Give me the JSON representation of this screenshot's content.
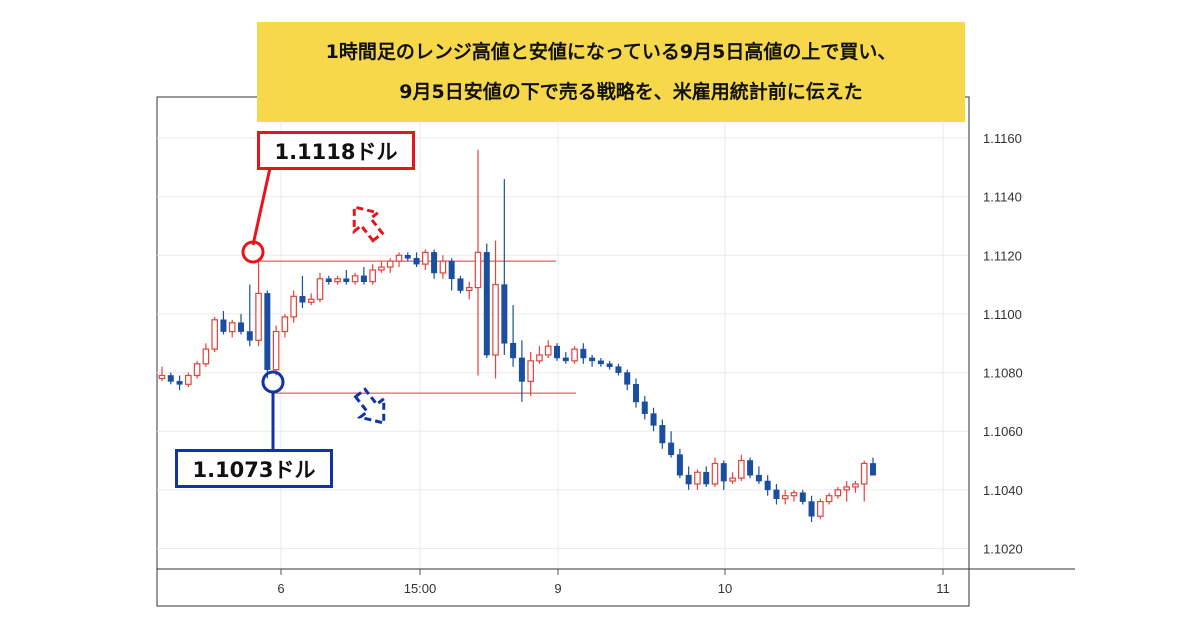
{
  "banner": {
    "line1": "1時間足のレンジ高値と安値になっている9月5日高値の上で買い、",
    "line2": "9月5日安値の下で売る戦略を、米雇用統計前に伝えた"
  },
  "annotations": {
    "high_label": "1.1118ドル",
    "low_label": "1.1073ドル"
  },
  "colors": {
    "up_candle": "#e8413a",
    "down_candle": "#1a4fa0",
    "high_marker": "#e8141c",
    "low_marker": "#1133a8",
    "banner_bg": "#f7d84a",
    "grid": "#ebebeb"
  },
  "chart_data": {
    "type": "candlestick",
    "timeframe": "1h",
    "y_axis": {
      "ticks": [
        "1.1020",
        "1.1040",
        "1.1060",
        "1.1080",
        "1.1100",
        "1.1120",
        "1.1140",
        "1.1160"
      ],
      "range": [
        1.1013,
        1.1174
      ],
      "position": "right"
    },
    "x_axis": {
      "ticks": [
        "6",
        "15:00",
        "9",
        "10",
        "11"
      ]
    },
    "levels": [
      {
        "name": "9月5日高値",
        "value": 1.1118,
        "label": "1.1118ドル",
        "color": "#e8141c"
      },
      {
        "name": "9月5日安値",
        "value": 1.1073,
        "label": "1.1073ドル",
        "color": "#1133a8"
      }
    ],
    "candles": [
      [
        1.1078,
        1.1082,
        1.1077,
        1.1079
      ],
      [
        1.1079,
        1.108,
        1.1076,
        1.1077
      ],
      [
        1.1077,
        1.1079,
        1.1074,
        1.1076
      ],
      [
        1.1076,
        1.108,
        1.1075,
        1.1079
      ],
      [
        1.1079,
        1.1084,
        1.1078,
        1.1083
      ],
      [
        1.1083,
        1.109,
        1.1082,
        1.1088
      ],
      [
        1.1088,
        1.1099,
        1.1087,
        1.1098
      ],
      [
        1.1098,
        1.1101,
        1.1093,
        1.1094
      ],
      [
        1.1094,
        1.1098,
        1.1092,
        1.1097
      ],
      [
        1.1097,
        1.11,
        1.1093,
        1.1094
      ],
      [
        1.1094,
        1.111,
        1.1089,
        1.1091
      ],
      [
        1.1091,
        1.1119,
        1.1089,
        1.1107
      ],
      [
        1.1107,
        1.1108,
        1.1078,
        1.1081
      ],
      [
        1.1081,
        1.1096,
        1.1079,
        1.1094
      ],
      [
        1.1094,
        1.11,
        1.1092,
        1.1099
      ],
      [
        1.1099,
        1.1108,
        1.1097,
        1.1106
      ],
      [
        1.1106,
        1.1113,
        1.1102,
        1.1104
      ],
      [
        1.1104,
        1.1107,
        1.1103,
        1.1105
      ],
      [
        1.1105,
        1.1114,
        1.1104,
        1.1112
      ],
      [
        1.1112,
        1.1113,
        1.111,
        1.1111
      ],
      [
        1.1111,
        1.1113,
        1.111,
        1.1112
      ],
      [
        1.1112,
        1.1115,
        1.111,
        1.1111
      ],
      [
        1.1111,
        1.1114,
        1.111,
        1.1113
      ],
      [
        1.1113,
        1.1116,
        1.111,
        1.1111
      ],
      [
        1.1111,
        1.1117,
        1.111,
        1.1115
      ],
      [
        1.1115,
        1.1118,
        1.1114,
        1.1116
      ],
      [
        1.1116,
        1.1119,
        1.1114,
        1.1118
      ],
      [
        1.1118,
        1.1121,
        1.1116,
        1.112
      ],
      [
        1.112,
        1.1121,
        1.1118,
        1.1119
      ],
      [
        1.1119,
        1.1121,
        1.1116,
        1.1117
      ],
      [
        1.1117,
        1.1122,
        1.1115,
        1.1121
      ],
      [
        1.1121,
        1.1122,
        1.1112,
        1.1114
      ],
      [
        1.1114,
        1.112,
        1.1112,
        1.1118
      ],
      [
        1.1118,
        1.1119,
        1.1108,
        1.1112
      ],
      [
        1.1112,
        1.1113,
        1.1107,
        1.1108
      ],
      [
        1.1108,
        1.1111,
        1.1105,
        1.1109
      ],
      [
        1.1109,
        1.1156,
        1.1079,
        1.1121
      ],
      [
        1.1121,
        1.1124,
        1.1085,
        1.1086
      ],
      [
        1.1086,
        1.1125,
        1.1078,
        1.111
      ],
      [
        1.111,
        1.1146,
        1.1086,
        1.109
      ],
      [
        1.109,
        1.1103,
        1.1082,
        1.1085
      ],
      [
        1.1085,
        1.1091,
        1.107,
        1.1077
      ],
      [
        1.1077,
        1.1087,
        1.1072,
        1.1084
      ],
      [
        1.1084,
        1.1089,
        1.1083,
        1.1086
      ],
      [
        1.1086,
        1.1091,
        1.1085,
        1.1089
      ],
      [
        1.1089,
        1.109,
        1.1084,
        1.1085
      ],
      [
        1.1085,
        1.1087,
        1.1083,
        1.1084
      ],
      [
        1.1084,
        1.1089,
        1.1083,
        1.1088
      ],
      [
        1.1088,
        1.109,
        1.1083,
        1.1085
      ],
      [
        1.1085,
        1.1086,
        1.1082,
        1.1084
      ],
      [
        1.1084,
        1.1085,
        1.1082,
        1.1083
      ],
      [
        1.1083,
        1.1084,
        1.1081,
        1.1082
      ],
      [
        1.1082,
        1.1083,
        1.1079,
        1.108
      ],
      [
        1.108,
        1.1081,
        1.1074,
        1.1076
      ],
      [
        1.1076,
        1.1078,
        1.1068,
        1.107
      ],
      [
        1.107,
        1.1072,
        1.1064,
        1.1066
      ],
      [
        1.1066,
        1.1068,
        1.106,
        1.1062
      ],
      [
        1.1062,
        1.1064,
        1.1054,
        1.1056
      ],
      [
        1.1056,
        1.106,
        1.1051,
        1.1052
      ],
      [
        1.1052,
        1.1054,
        1.1044,
        1.1045
      ],
      [
        1.1045,
        1.1048,
        1.104,
        1.1042
      ],
      [
        1.1042,
        1.1047,
        1.104,
        1.1046
      ],
      [
        1.1046,
        1.1048,
        1.1041,
        1.1042
      ],
      [
        1.1042,
        1.1051,
        1.1041,
        1.1049
      ],
      [
        1.1049,
        1.105,
        1.104,
        1.1043
      ],
      [
        1.1043,
        1.1046,
        1.1042,
        1.1044
      ],
      [
        1.1044,
        1.1052,
        1.1043,
        1.105
      ],
      [
        1.105,
        1.1051,
        1.1044,
        1.1045
      ],
      [
        1.1045,
        1.1048,
        1.1042,
        1.1043
      ],
      [
        1.1043,
        1.1045,
        1.1038,
        1.104
      ],
      [
        1.104,
        1.1042,
        1.1035,
        1.1037
      ],
      [
        1.1037,
        1.104,
        1.1035,
        1.1038
      ],
      [
        1.1038,
        1.104,
        1.1036,
        1.1039
      ],
      [
        1.1039,
        1.104,
        1.1035,
        1.1036
      ],
      [
        1.1036,
        1.1038,
        1.1029,
        1.1031
      ],
      [
        1.1031,
        1.1037,
        1.103,
        1.1036
      ],
      [
        1.1036,
        1.1039,
        1.1035,
        1.1038
      ],
      [
        1.1038,
        1.1041,
        1.1037,
        1.104
      ],
      [
        1.104,
        1.1043,
        1.1036,
        1.1041
      ],
      [
        1.1041,
        1.1043,
        1.1039,
        1.1042
      ],
      [
        1.1042,
        1.105,
        1.1036,
        1.1049
      ],
      [
        1.1049,
        1.1051,
        1.1045,
        1.1045
      ]
    ]
  }
}
